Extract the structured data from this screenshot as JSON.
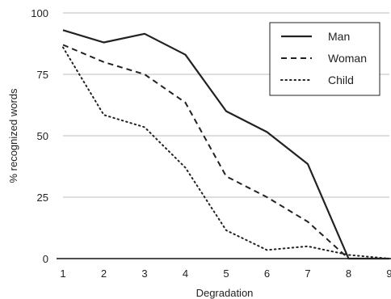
{
  "chart_data": {
    "type": "line",
    "title": "",
    "xlabel": "Degradation",
    "ylabel": "% recognized words",
    "xlim": [
      1,
      9
    ],
    "ylim": [
      0,
      100
    ],
    "x": [
      1,
      2,
      3,
      4,
      5,
      6,
      7,
      8,
      9
    ],
    "yticks": [
      0,
      25,
      50,
      75,
      100
    ],
    "grid": "horizontal",
    "legend": "top-right",
    "series": [
      {
        "name": "Man",
        "style": "solid",
        "values": [
          93,
          88,
          91.5,
          83,
          60,
          51.5,
          38.5,
          0,
          0
        ]
      },
      {
        "name": "Woman",
        "style": "dashed",
        "values": [
          87,
          80,
          75,
          63.5,
          33.5,
          25,
          15,
          0,
          0
        ]
      },
      {
        "name": "Child",
        "style": "dotted",
        "values": [
          86,
          58.5,
          53.5,
          37,
          11.5,
          3.5,
          5,
          1.5,
          0
        ]
      }
    ],
    "colors": {
      "line": "#222222",
      "grid": "#bdbdbd",
      "axis": "#111111"
    }
  }
}
